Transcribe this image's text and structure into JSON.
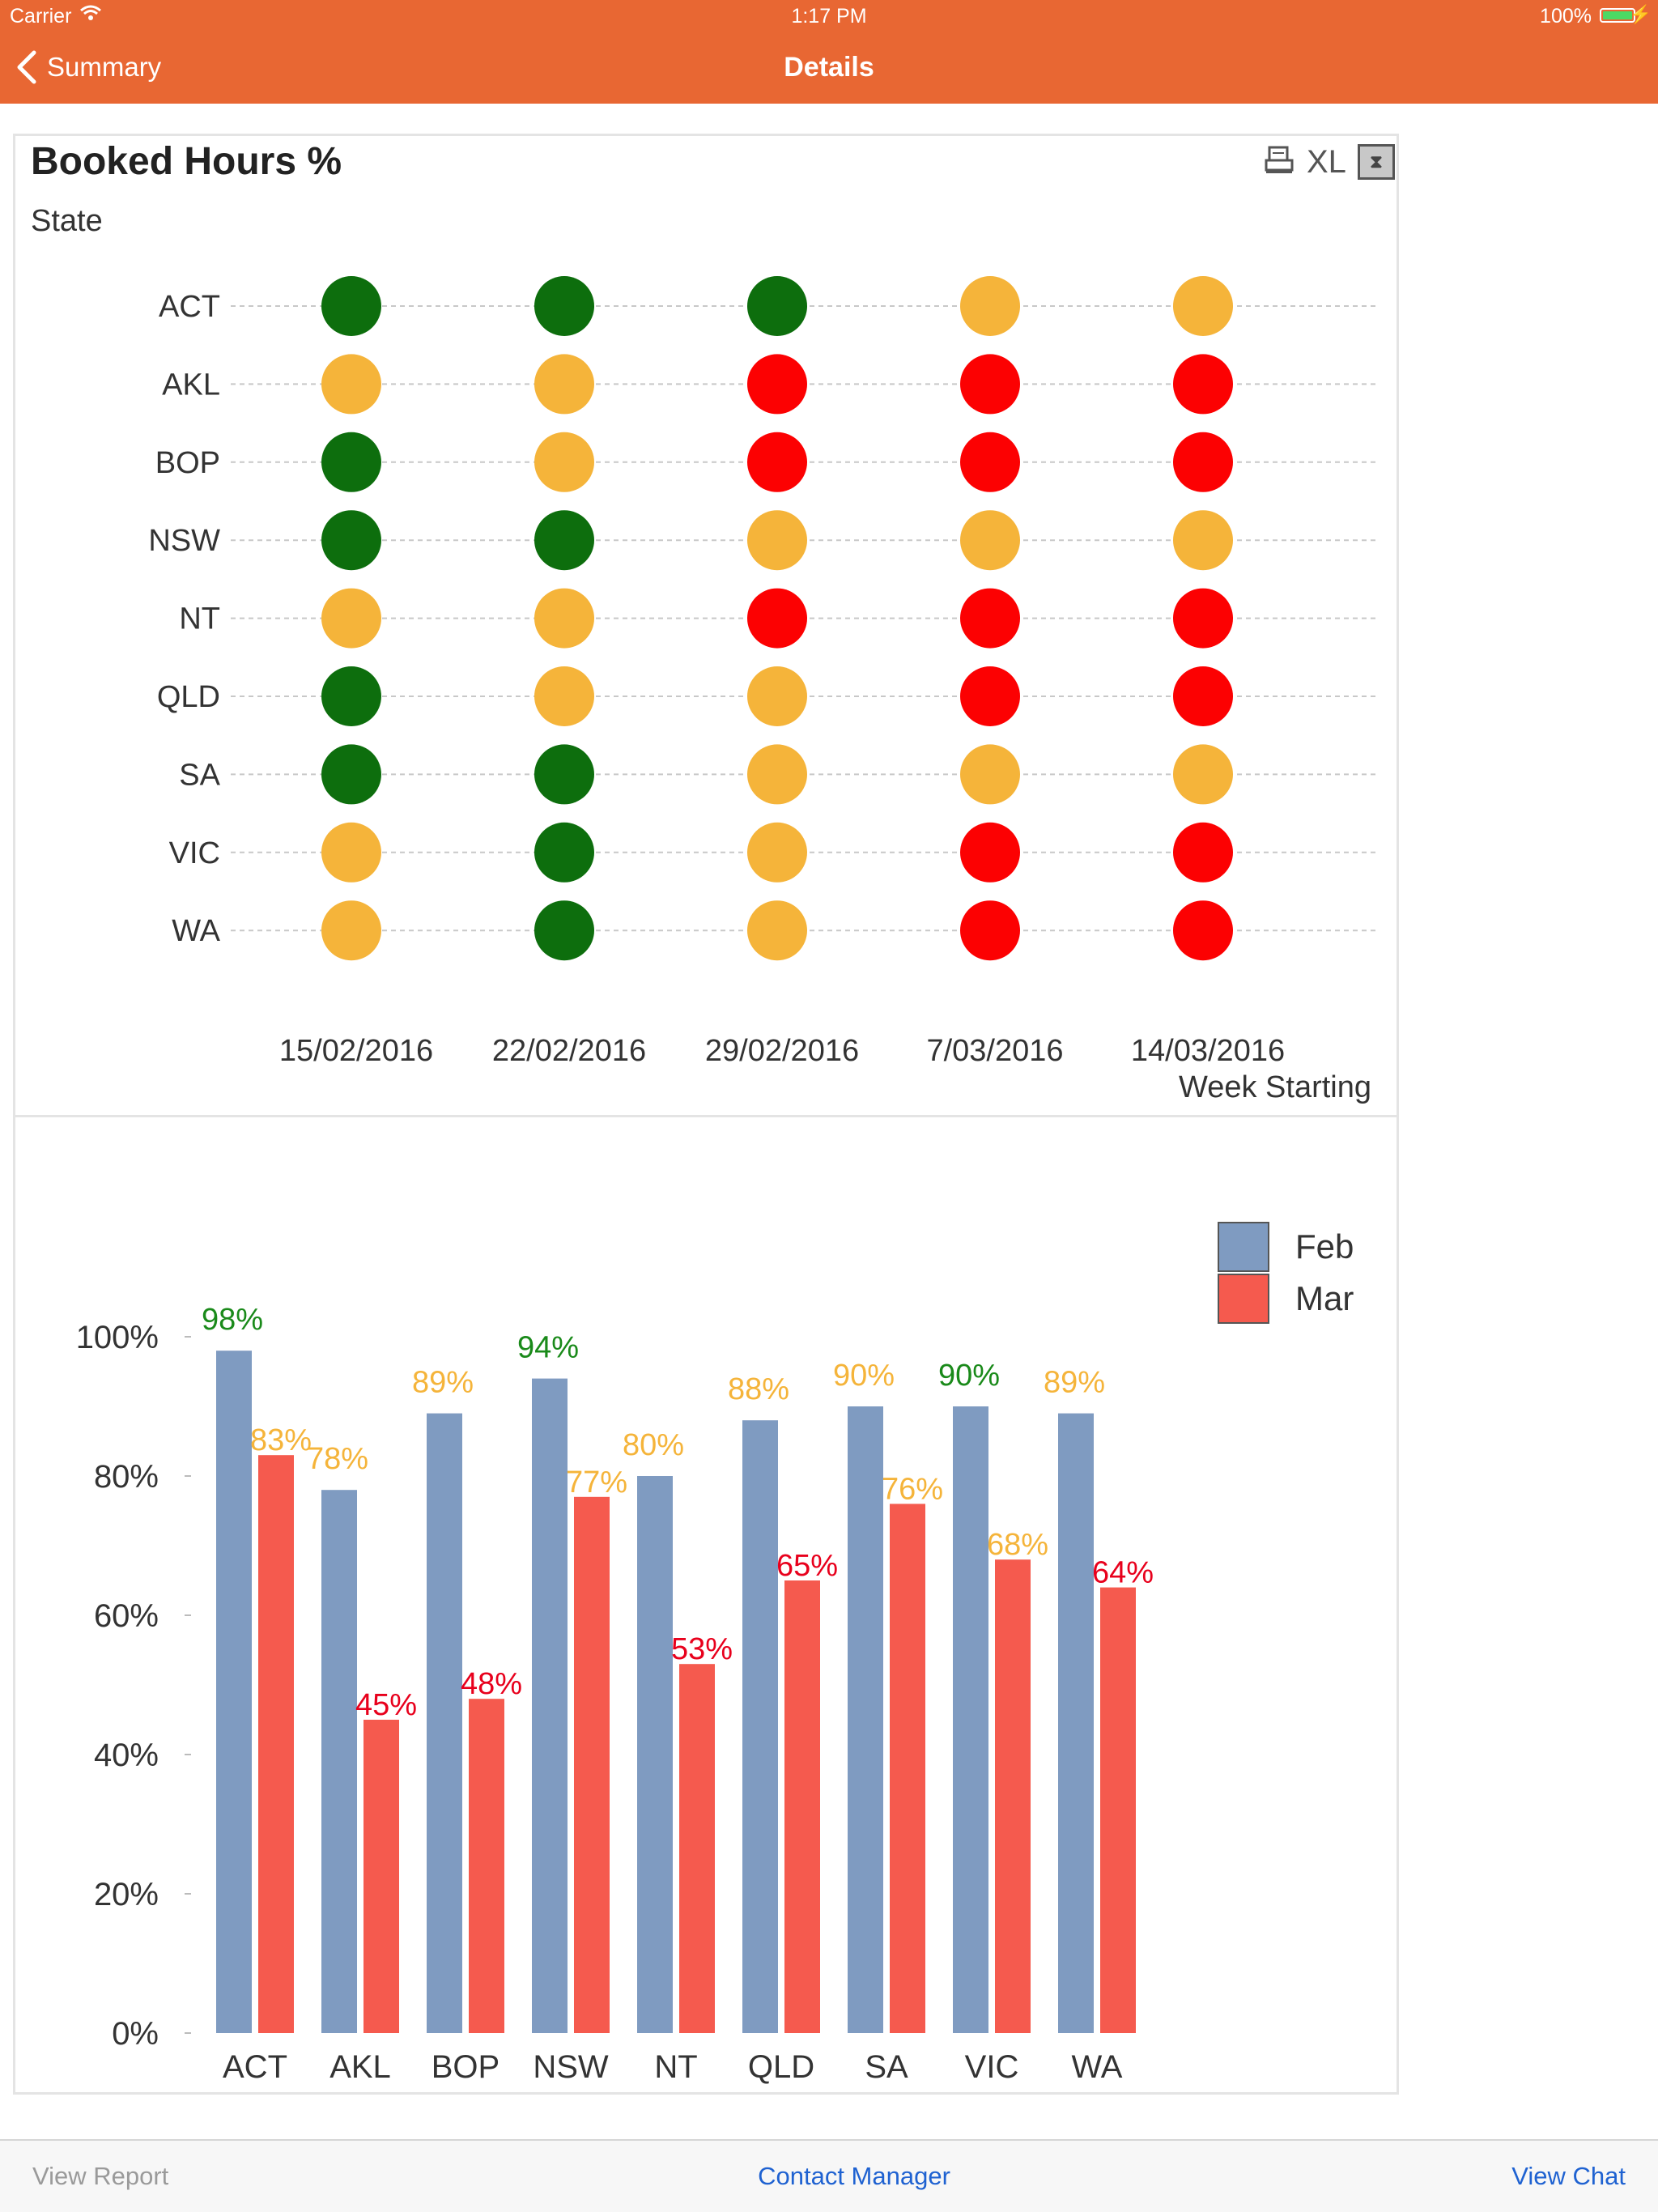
{
  "status_bar": {
    "carrier": "Carrier",
    "time": "1:17 PM",
    "battery": "100%"
  },
  "nav": {
    "back_label": "Summary",
    "title": "Details"
  },
  "dot_chart": {
    "title": "Booked Hours %",
    "y_label": "State",
    "x_label": "Week Starting",
    "colors": {
      "green": "#0d6e0d",
      "amber": "#f5b43a",
      "red": "#fc0102"
    },
    "states": [
      "ACT",
      "AKL",
      "BOP",
      "NSW",
      "NT",
      "QLD",
      "SA",
      "VIC",
      "WA"
    ],
    "weeks": [
      "15/02/2016",
      "22/02/2016",
      "29/02/2016",
      "7/03/2016",
      "14/03/2016"
    ],
    "status_matrix": [
      [
        "green",
        "green",
        "green",
        "amber",
        "amber"
      ],
      [
        "amber",
        "amber",
        "red",
        "red",
        "red"
      ],
      [
        "green",
        "amber",
        "red",
        "red",
        "red"
      ],
      [
        "green",
        "green",
        "amber",
        "amber",
        "amber"
      ],
      [
        "amber",
        "amber",
        "red",
        "red",
        "red"
      ],
      [
        "green",
        "amber",
        "amber",
        "red",
        "red"
      ],
      [
        "green",
        "green",
        "amber",
        "amber",
        "amber"
      ],
      [
        "amber",
        "green",
        "amber",
        "red",
        "red"
      ],
      [
        "amber",
        "green",
        "amber",
        "red",
        "red"
      ]
    ]
  },
  "toolbar": {
    "print_icon": "print-icon",
    "xl_label": "XL",
    "excel_icon": "excel-icon"
  },
  "chart_data": {
    "type": "bar",
    "categories": [
      "ACT",
      "AKL",
      "BOP",
      "NSW",
      "NT",
      "QLD",
      "SA",
      "VIC",
      "WA"
    ],
    "series": [
      {
        "name": "Feb",
        "color": "#7f9bc1",
        "values": [
          98,
          78,
          89,
          94,
          80,
          88,
          90,
          90,
          89
        ],
        "labels": [
          "98%",
          "78%",
          "89%",
          "94%",
          "80%",
          "88%",
          "90%",
          "90%",
          "89%"
        ],
        "label_colors": [
          "#1a8a1a",
          "#f5b43a",
          "#f5b43a",
          "#1a8a1a",
          "#f5b43a",
          "#f5b43a",
          "#f5b43a",
          "#1a8a1a",
          "#f5b43a"
        ]
      },
      {
        "name": "Mar",
        "color": "#f55a4e",
        "values": [
          83,
          45,
          48,
          77,
          53,
          65,
          76,
          68,
          64
        ],
        "labels": [
          "83%",
          "45%",
          "48%",
          "77%",
          "53%",
          "65%",
          "76%",
          "68%",
          "64%"
        ],
        "label_colors": [
          "#f5b43a",
          "#e8001c",
          "#e8001c",
          "#f5b43a",
          "#e8001c",
          "#e8001c",
          "#f5b43a",
          "#f5b43a",
          "#e8001c"
        ]
      }
    ],
    "y_ticks": [
      "0%",
      "20%",
      "40%",
      "60%",
      "80%",
      "100%"
    ],
    "ylim": [
      0,
      100
    ],
    "legend_position": "top-right"
  },
  "bottom_bar": {
    "view_report": "View Report",
    "contact_manager": "Contact Manager",
    "view_chat": "View Chat"
  }
}
